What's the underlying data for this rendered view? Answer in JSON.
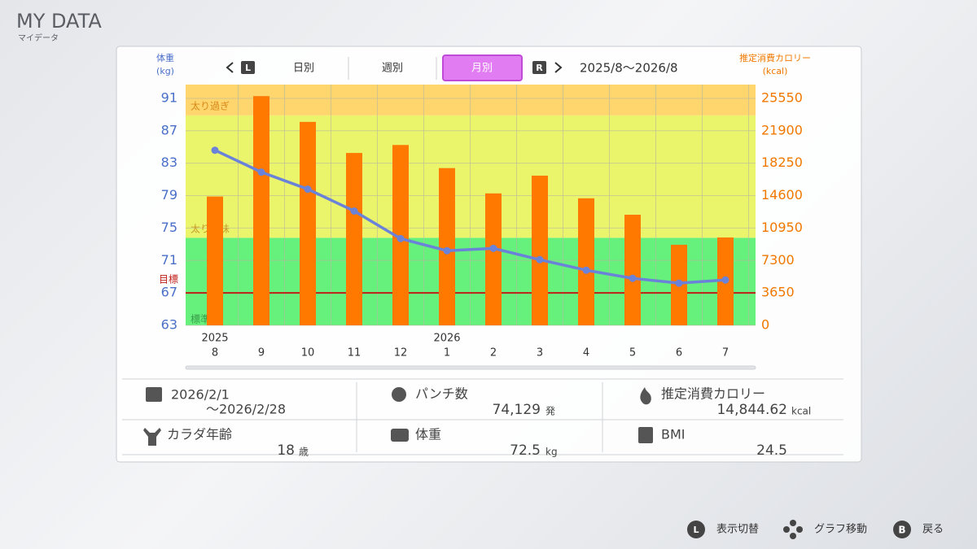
{
  "header": {
    "title": "MY DATA",
    "subtitle": "マイデータ"
  },
  "tabs": {
    "prev_button": "L",
    "next_button": "R",
    "items": [
      "日別",
      "週別",
      "月別"
    ],
    "selected": 2,
    "range": "2025/8〜2026/8"
  },
  "chart_data": {
    "type": "bar_line",
    "y_axis_label": [
      "体重",
      "(kg)"
    ],
    "y2_axis_label": [
      "推定消費カロリー",
      "(kcal)"
    ],
    "categories": [
      "8",
      "9",
      "10",
      "11",
      "12",
      "1",
      "2",
      "3",
      "4",
      "5",
      "6",
      "7"
    ],
    "year_labels": [
      "2025",
      null,
      null,
      null,
      null,
      "2026",
      null,
      null,
      null,
      null,
      null,
      null
    ],
    "ylim": [
      63,
      92.7
    ],
    "yticks": [
      63,
      67,
      71,
      75,
      79,
      83,
      87,
      91
    ],
    "y2lim": [
      0,
      27100
    ],
    "y2ticks": [
      0,
      3650,
      7300,
      10950,
      14600,
      18250,
      21900,
      25550
    ],
    "bands": [
      {
        "label": "標準",
        "from": 63,
        "to": 73.8,
        "color": "#66f07c",
        "label_color": "#3a9a4a"
      },
      {
        "label": "太り気味",
        "from": 73.8,
        "to": 88.9,
        "color": "#eaf56c",
        "label_color": "#c99a2a"
      },
      {
        "label": "太り過ぎ",
        "from": 88.9,
        "to": 92.7,
        "color": "#ffd56e",
        "label_color": "#d98a1a"
      }
    ],
    "goal": {
      "label": "目標",
      "value": 67,
      "color": "#c0201a"
    },
    "series": [
      {
        "name": "推定消費カロリー",
        "type": "bar",
        "axis": "y2",
        "color": "#ff7800",
        "values": [
          14500,
          25800,
          22900,
          19400,
          20300,
          17700,
          14850,
          16850,
          14300,
          12450,
          9070,
          9890
        ]
      },
      {
        "name": "体重",
        "type": "line",
        "axis": "y",
        "color": "#6a82d8",
        "values": [
          84.6,
          81.9,
          79.8,
          77.1,
          73.7,
          72.2,
          72.5,
          71.1,
          69.8,
          68.8,
          68.2,
          68.6
        ]
      }
    ],
    "y_tick_color": "#4a6fc8",
    "y2_tick_color": "#f07800"
  },
  "stats": {
    "period": {
      "from": "2026/2/1",
      "to": "〜2026/2/28"
    },
    "punches": {
      "label": "パンチ数",
      "value": "74,129",
      "unit": "発"
    },
    "calories": {
      "label": "推定消費カロリー",
      "value": "14,844.62",
      "unit": "kcal"
    },
    "body_age": {
      "label": "カラダ年齢",
      "value": "18",
      "unit": "歳"
    },
    "weight": {
      "label": "体重",
      "value": "72.5",
      "unit": "kg"
    },
    "bmi": {
      "label": "BMI",
      "value": "24.5"
    }
  },
  "footer": [
    {
      "button": "L",
      "label": "表示切替"
    },
    {
      "label": "グラフ移動"
    },
    {
      "button": "B",
      "label": "戻る"
    }
  ]
}
